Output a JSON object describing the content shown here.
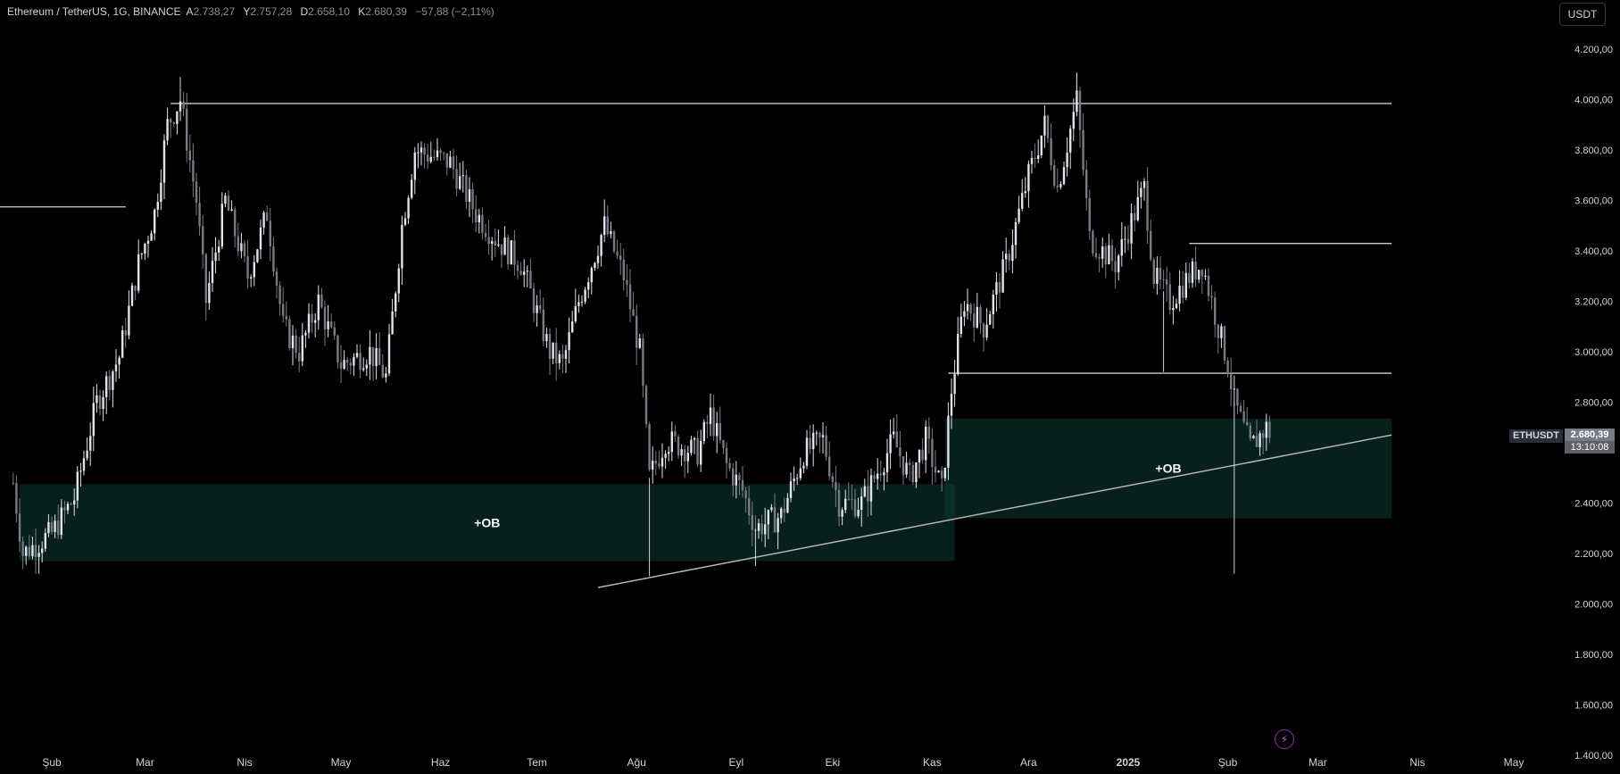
{
  "header": {
    "title": "Ethereum / TetherUS, 1G, BINANCE",
    "o_label": "A",
    "o_value": "2.738,27",
    "h_label": "Y",
    "h_value": "2.757,28",
    "l_label": "D",
    "l_value": "2.658,10",
    "c_label": "K",
    "c_value": "2.680,39",
    "change": "−57,88 (−2,11%)"
  },
  "currency_button": "USDT",
  "colors": {
    "background": "#000000",
    "candle": "#d1d4dc",
    "zone": "#0c3b33",
    "line": "#c9cbd1"
  },
  "chart_data": {
    "type": "candlestick",
    "symbol": "ETHUSDT",
    "last_price": "2.680,39",
    "countdown": "13:10:08",
    "ylim": [
      1350,
      4300
    ],
    "y_ticks": [
      {
        "v": 4200,
        "label": "4.200,00"
      },
      {
        "v": 4000,
        "label": "4.000,00"
      },
      {
        "v": 3800,
        "label": "3.800,00"
      },
      {
        "v": 3600,
        "label": "3.600,00"
      },
      {
        "v": 3400,
        "label": "3.400,00"
      },
      {
        "v": 3200,
        "label": "3.200,00"
      },
      {
        "v": 3000,
        "label": "3.000,00"
      },
      {
        "v": 2800,
        "label": "2.800,00"
      },
      {
        "v": 2400,
        "label": "2.400,00"
      },
      {
        "v": 2200,
        "label": "2.200,00"
      },
      {
        "v": 2000,
        "label": "2.000,00"
      },
      {
        "v": 1800,
        "label": "1.800,00"
      },
      {
        "v": 1600,
        "label": "1.600,00"
      },
      {
        "v": 1400,
        "label": "1.400,00"
      }
    ],
    "x_ticks": [
      {
        "date": "2024-02-01",
        "label": "Şub"
      },
      {
        "date": "2024-03-01",
        "label": "Mar"
      },
      {
        "date": "2024-04-01",
        "label": "Nis"
      },
      {
        "date": "2024-05-01",
        "label": "May"
      },
      {
        "date": "2024-06-01",
        "label": "Haz"
      },
      {
        "date": "2024-07-01",
        "label": "Tem"
      },
      {
        "date": "2024-08-01",
        "label": "Ağu"
      },
      {
        "date": "2024-09-01",
        "label": "Eyl"
      },
      {
        "date": "2024-10-01",
        "label": "Eki"
      },
      {
        "date": "2024-11-01",
        "label": "Kas"
      },
      {
        "date": "2024-12-01",
        "label": "Ara"
      },
      {
        "date": "2025-01-01",
        "label": "2025"
      },
      {
        "date": "2025-02-01",
        "label": "Şub"
      },
      {
        "date": "2025-03-01",
        "label": "Mar"
      },
      {
        "date": "2025-04-01",
        "label": "Nis"
      },
      {
        "date": "2025-05-01",
        "label": "May"
      }
    ],
    "price_path": [
      [
        "2024-01-20",
        2480
      ],
      [
        "2024-01-23",
        2200
      ],
      [
        "2024-02-01",
        2280
      ],
      [
        "2024-02-08",
        2420
      ],
      [
        "2024-02-15",
        2800
      ],
      [
        "2024-02-22",
        2980
      ],
      [
        "2024-02-28",
        3350
      ],
      [
        "2024-03-04",
        3550
      ],
      [
        "2024-03-08",
        3900
      ],
      [
        "2024-03-12",
        4000
      ],
      [
        "2024-03-17",
        3600
      ],
      [
        "2024-03-20",
        3200
      ],
      [
        "2024-03-26",
        3600
      ],
      [
        "2024-04-02",
        3300
      ],
      [
        "2024-04-08",
        3550
      ],
      [
        "2024-04-13",
        3100
      ],
      [
        "2024-04-18",
        3000
      ],
      [
        "2024-04-24",
        3200
      ],
      [
        "2024-05-01",
        2950
      ],
      [
        "2024-05-10",
        3000
      ],
      [
        "2024-05-15",
        2900
      ],
      [
        "2024-05-20",
        3500
      ],
      [
        "2024-05-24",
        3800
      ],
      [
        "2024-06-04",
        3750
      ],
      [
        "2024-06-12",
        3550
      ],
      [
        "2024-06-18",
        3450
      ],
      [
        "2024-06-26",
        3350
      ],
      [
        "2024-07-05",
        3000
      ],
      [
        "2024-07-09",
        2950
      ],
      [
        "2024-07-14",
        3200
      ],
      [
        "2024-07-22",
        3500
      ],
      [
        "2024-07-28",
        3300
      ],
      [
        "2024-08-02",
        3000
      ],
      [
        "2024-08-05",
        2500
      ],
      [
        "2024-08-10",
        2650
      ],
      [
        "2024-08-20",
        2600
      ],
      [
        "2024-08-24",
        2750
      ],
      [
        "2024-08-29",
        2550
      ],
      [
        "2024-09-03",
        2450
      ],
      [
        "2024-09-07",
        2300
      ],
      [
        "2024-09-15",
        2350
      ],
      [
        "2024-09-22",
        2600
      ],
      [
        "2024-09-28",
        2650
      ],
      [
        "2024-10-03",
        2400
      ],
      [
        "2024-10-10",
        2400
      ],
      [
        "2024-10-20",
        2650
      ],
      [
        "2024-10-25",
        2500
      ],
      [
        "2024-10-30",
        2650
      ],
      [
        "2024-11-04",
        2450
      ],
      [
        "2024-11-07",
        2850
      ],
      [
        "2024-11-11",
        3200
      ],
      [
        "2024-11-17",
        3100
      ],
      [
        "2024-11-24",
        3350
      ],
      [
        "2024-12-01",
        3700
      ],
      [
        "2024-12-06",
        3900
      ],
      [
        "2024-12-10",
        3650
      ],
      [
        "2024-12-16",
        4000
      ],
      [
        "2024-12-20",
        3450
      ],
      [
        "2024-12-28",
        3350
      ],
      [
        "2025-01-06",
        3650
      ],
      [
        "2025-01-09",
        3300
      ],
      [
        "2025-01-14",
        3200
      ],
      [
        "2025-01-20",
        3300
      ],
      [
        "2025-01-24",
        3350
      ],
      [
        "2025-01-28",
        3150
      ],
      [
        "2025-02-01",
        2950
      ],
      [
        "2025-02-03",
        2800
      ],
      [
        "2025-02-08",
        2620
      ],
      [
        "2025-02-13",
        2700
      ],
      [
        "2025-02-14",
        2680
      ]
    ],
    "spikes": [
      {
        "date": "2024-08-05",
        "low": 2110
      },
      {
        "date": "2024-09-07",
        "low": 2150
      },
      {
        "date": "2025-02-03",
        "low": 2120
      },
      {
        "date": "2025-01-12",
        "low": 2920
      },
      {
        "date": "2024-12-16",
        "high": 4108
      },
      {
        "date": "2024-03-12",
        "high": 4090
      }
    ],
    "horizontal_lines": [
      {
        "from": "2024-03-09",
        "to": "2025-03-24",
        "price": 3985
      },
      {
        "from": "2024-01-01",
        "to": "2024-02-24",
        "price": 3575
      },
      {
        "from": "2025-01-20",
        "to": "2025-03-24",
        "price": 3430
      },
      {
        "from": "2024-11-06",
        "to": "2025-03-24",
        "price": 2915
      }
    ],
    "trend_line": {
      "from": [
        "2024-07-20",
        2065
      ],
      "to": [
        "2025-03-24",
        2670
      ]
    },
    "zones": [
      {
        "from": "2024-01-22",
        "to": "2024-11-08",
        "top": 2475,
        "bottom": 2170,
        "label": "+OB"
      },
      {
        "from": "2024-11-05",
        "to": "2025-03-24",
        "top": 2735,
        "bottom": 2340,
        "label": "+OB"
      }
    ]
  }
}
